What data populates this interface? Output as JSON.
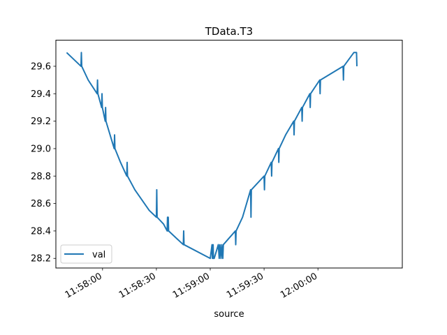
{
  "chart_data": {
    "type": "line",
    "title": "TData.T3",
    "xlabel": "source",
    "ylabel": "",
    "x_axis_kind": "time",
    "xlim": [
      "11:57:34",
      "12:00:47"
    ],
    "ylim": [
      28.13,
      29.79
    ],
    "x_ticks": [
      "11:58:00",
      "11:58:30",
      "11:59:00",
      "11:59:30",
      "12:00:00"
    ],
    "y_ticks": [
      28.2,
      28.4,
      28.6,
      28.8,
      29.0,
      29.2,
      29.4,
      29.6
    ],
    "y_tick_labels": [
      "28.2",
      "28.4",
      "28.6",
      "28.8",
      "29.0",
      "29.2",
      "29.4",
      "29.6"
    ],
    "grid": false,
    "legend_position": "lower-left",
    "series": [
      {
        "name": "val",
        "color": "#1f77b4",
        "points": [
          [
            "11:57:40.0",
            29.7
          ],
          [
            "11:57:48.0",
            29.6
          ],
          [
            "11:57:48.2",
            29.7
          ],
          [
            "11:57:48.4",
            29.6
          ],
          [
            "11:57:52.0",
            29.5
          ],
          [
            "11:57:57.0",
            29.4
          ],
          [
            "11:57:57.2",
            29.5
          ],
          [
            "11:57:57.4",
            29.4
          ],
          [
            "11:57:59.5",
            29.3
          ],
          [
            "11:57:59.7",
            29.4
          ],
          [
            "11:57:59.9",
            29.3
          ],
          [
            "11:58:01.5",
            29.2
          ],
          [
            "11:58:01.7",
            29.3
          ],
          [
            "11:58:01.9",
            29.2
          ],
          [
            "11:58:06.5",
            29.0
          ],
          [
            "11:58:06.7",
            29.1
          ],
          [
            "11:58:06.9",
            29.0
          ],
          [
            "11:58:10.0",
            28.9
          ],
          [
            "11:58:13.5",
            28.8
          ],
          [
            "11:58:13.7",
            28.9
          ],
          [
            "11:58:13.9",
            28.8
          ],
          [
            "11:58:18.0",
            28.7
          ],
          [
            "11:58:26.0",
            28.55
          ],
          [
            "11:58:30.0",
            28.5
          ],
          [
            "11:58:30.2",
            28.7
          ],
          [
            "11:58:30.4",
            28.5
          ],
          [
            "11:58:34.0",
            28.45
          ],
          [
            "11:58:36.0",
            28.4
          ],
          [
            "11:58:36.2",
            28.5
          ],
          [
            "11:58:36.4",
            28.4
          ],
          [
            "11:58:36.6",
            28.5
          ],
          [
            "11:58:36.8",
            28.4
          ],
          [
            "11:58:45.0",
            28.3
          ],
          [
            "11:58:45.2",
            28.4
          ],
          [
            "11:58:45.4",
            28.3
          ],
          [
            "11:59:00.0",
            28.2
          ],
          [
            "11:59:01.0",
            28.3
          ],
          [
            "11:59:01.2",
            28.2
          ],
          [
            "11:59:01.6",
            28.3
          ],
          [
            "11:59:01.8",
            28.2
          ],
          [
            "11:59:02.2",
            28.2
          ],
          [
            "11:59:04.5",
            28.3
          ],
          [
            "11:59:05.0",
            28.2
          ],
          [
            "11:59:05.4",
            28.3
          ],
          [
            "11:59:06.0",
            28.2
          ],
          [
            "11:59:06.4",
            28.3
          ],
          [
            "11:59:07.0",
            28.2
          ],
          [
            "11:59:07.3",
            28.3
          ],
          [
            "11:59:14.0",
            28.4
          ],
          [
            "11:59:14.2",
            28.3
          ],
          [
            "11:59:14.4",
            28.4
          ],
          [
            "11:59:18.0",
            28.5
          ],
          [
            "11:59:22.5",
            28.7
          ],
          [
            "11:59:22.7",
            28.5
          ],
          [
            "11:59:22.9",
            28.7
          ],
          [
            "11:59:30.0",
            28.8
          ],
          [
            "11:59:30.2",
            28.7
          ],
          [
            "11:59:30.4",
            28.8
          ],
          [
            "11:59:34.0",
            28.9
          ],
          [
            "11:59:34.2",
            28.8
          ],
          [
            "11:59:34.4",
            28.9
          ],
          [
            "11:59:38.0",
            29.0
          ],
          [
            "11:59:38.2",
            28.9
          ],
          [
            "11:59:38.4",
            29.0
          ],
          [
            "11:59:42.0",
            29.1
          ],
          [
            "11:59:46.5",
            29.2
          ],
          [
            "11:59:46.7",
            29.1
          ],
          [
            "11:59:46.9",
            29.2
          ],
          [
            "11:59:51.0",
            29.3
          ],
          [
            "11:59:51.2",
            29.2
          ],
          [
            "11:59:51.4",
            29.3
          ],
          [
            "11:59:55.5",
            29.4
          ],
          [
            "11:59:55.7",
            29.3
          ],
          [
            "11:59:55.9",
            29.4
          ],
          [
            "12:00:01.0",
            29.5
          ],
          [
            "12:00:01.2",
            29.4
          ],
          [
            "12:00:01.4",
            29.5
          ],
          [
            "12:00:14.0",
            29.6
          ],
          [
            "12:00:14.2",
            29.5
          ],
          [
            "12:00:14.4",
            29.6
          ],
          [
            "12:00:20.0",
            29.7
          ],
          [
            "12:00:21.5",
            29.7
          ],
          [
            "12:00:21.7",
            29.6
          ]
        ]
      }
    ]
  }
}
